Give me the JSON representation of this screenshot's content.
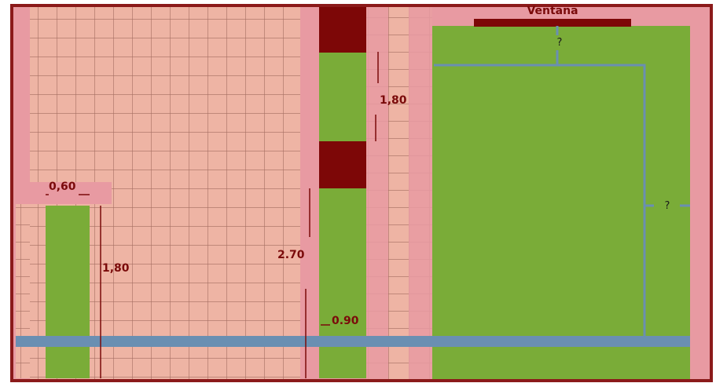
{
  "labels": {
    "window": "Ventana",
    "top_width": "?",
    "right_height": "?",
    "left_width": "0,60",
    "left_height": "1,80",
    "center_height": "2.70",
    "center_width": "0.90",
    "right_column_height": "1,80"
  },
  "colors": {
    "background": "#ffffff",
    "border": "#8b1a1a",
    "tile": "#eeb4a4",
    "grout": "#a56e62",
    "pink": "#e89aa2",
    "green": "#7aac38",
    "maroon": "#7d0707",
    "pipe": "#6a8fb2",
    "label": "#7a0a0a"
  }
}
